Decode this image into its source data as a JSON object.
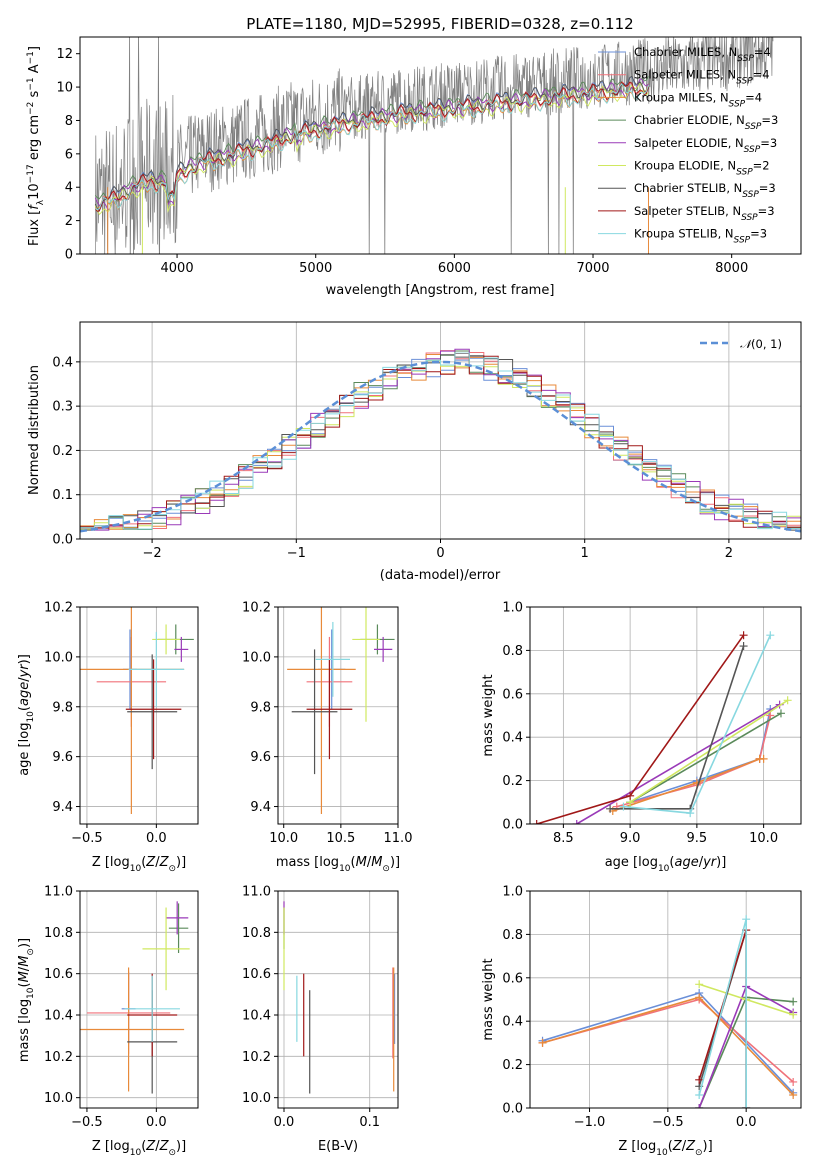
{
  "figure_title": "PLATE=1180, MJD=52995, FIBERID=0328, z=0.112",
  "colors": {
    "Chabrier MILES": "#6a8fd8",
    "Salpeter MILES": "#f0727a",
    "Kroupa MILES": "#e88a3a",
    "Chabrier ELODIE": "#5a8a5a",
    "Salpeter ELODIE": "#9a3ab8",
    "Kroupa ELODIE": "#d0e860",
    "Chabrier STELIB": "#555555",
    "Salpeter STELIB": "#a01818",
    "Kroupa STELIB": "#88d8e0",
    "data": "#808080",
    "normal": "#5b8fd6"
  },
  "chart_data": [
    {
      "id": "spectrum",
      "type": "line",
      "title": "PLATE=1180, MJD=52995, FIBERID=0328, z=0.112",
      "xlabel": "wavelength [Angstrom, rest frame]",
      "ylabel": "Flux [fλ10⁻¹⁷ erg cm⁻² s⁻¹ A⁻¹]",
      "xlim": [
        3300,
        8500
      ],
      "ylim": [
        0,
        13
      ],
      "xticks": [
        4000,
        5000,
        6000,
        7000,
        8000
      ],
      "yticks": [
        0,
        2,
        4,
        6,
        8,
        10,
        12
      ],
      "grid": false,
      "legend_position": "top-right",
      "continuum": {
        "x": [
          3410,
          3500,
          3600,
          3700,
          3800,
          3900,
          4000,
          4100,
          4200,
          4300,
          4400,
          4500,
          4600,
          4700,
          4800,
          4900,
          5000,
          5200,
          5400,
          5600,
          5800,
          6000,
          6200,
          6400,
          6600,
          6800,
          7000,
          7200,
          7400,
          7600,
          7800,
          8000,
          8300
        ],
        "y": [
          3.3,
          3.6,
          4.0,
          4.6,
          4.9,
          4.8,
          5.2,
          5.8,
          6.2,
          6.4,
          6.6,
          6.9,
          7.1,
          7.4,
          7.8,
          8.0,
          8.2,
          8.6,
          8.9,
          9.2,
          9.4,
          9.6,
          9.8,
          10.0,
          10.2,
          10.4,
          10.6,
          10.8,
          11.0,
          11.2,
          11.5,
          11.8,
          12.3
        ]
      },
      "series": [
        {
          "name": "Chabrier MILES, N_SSP=4",
          "n": "4"
        },
        {
          "name": "Salpeter MILES, N_SSP=4",
          "n": "4"
        },
        {
          "name": "Kroupa MILES, N_SSP=4",
          "n": "4"
        },
        {
          "name": "Chabrier ELODIE, N_SSP=3",
          "n": "3"
        },
        {
          "name": "Salpeter ELODIE, N_SSP=3",
          "n": "3"
        },
        {
          "name": "Kroupa ELODIE, N_SSP=2",
          "n": "2"
        },
        {
          "name": "Chabrier STELIB, N_SSP=3",
          "n": "3"
        },
        {
          "name": "Salpeter STELIB, N_SSP=3",
          "n": "3"
        },
        {
          "name": "Kroupa STELIB, N_SSP=3",
          "n": "3"
        }
      ]
    },
    {
      "id": "residuals",
      "type": "line",
      "xlabel": "(data-model)/error",
      "ylabel": "Normed distribution",
      "xlim": [
        -2.5,
        2.5
      ],
      "ylim": [
        0,
        0.49
      ],
      "xticks": [
        -2,
        -1,
        0,
        1,
        2
      ],
      "yticks": [
        0.0,
        0.1,
        0.2,
        0.3,
        0.4
      ],
      "grid": true,
      "legend_position": "top-right",
      "reference": {
        "name": "N(0,1)",
        "mean": 0,
        "sigma": 1,
        "peak": 0.4
      },
      "bin_width": 0.1
    },
    {
      "id": "age-vs-Z",
      "type": "scatter",
      "xlabel": "Z [log10(Z/Z⊙)]",
      "ylabel": "age [log10(age/yr)]",
      "xlim": [
        -0.55,
        0.3
      ],
      "ylim": [
        9.33,
        10.2
      ],
      "xticks": [
        -0.5,
        0.0
      ],
      "yticks": [
        9.4,
        9.6,
        9.8,
        10.0,
        10.2
      ],
      "grid": true,
      "points": [
        {
          "series": "Chabrier MILES",
          "x": -0.19,
          "y": 9.95,
          "xerr": 0.05,
          "yerr": 0.16
        },
        {
          "series": "Salpeter MILES",
          "x": -0.18,
          "y": 9.9,
          "xerr": 0.25,
          "yerr": 0.18
        },
        {
          "series": "Kroupa MILES",
          "x": -0.18,
          "y": 9.95,
          "xerr": 0.38,
          "yerr": 0.58
        },
        {
          "series": "Chabrier ELODIE",
          "x": 0.14,
          "y": 10.07,
          "xerr": 0.13,
          "yerr": 0.06
        },
        {
          "series": "Salpeter ELODIE",
          "x": 0.18,
          "y": 10.03,
          "xerr": 0.05,
          "yerr": 0.05
        },
        {
          "series": "Kroupa ELODIE",
          "x": 0.07,
          "y": 10.07,
          "xerr": 0.1,
          "yerr": 0.06
        },
        {
          "series": "Chabrier STELIB",
          "x": -0.03,
          "y": 9.78,
          "xerr": 0.18,
          "yerr": 0.23
        },
        {
          "series": "Salpeter STELIB",
          "x": -0.02,
          "y": 9.79,
          "xerr": 0.2,
          "yerr": 0.2
        },
        {
          "series": "Kroupa STELIB",
          "x": 0.0,
          "y": 9.95,
          "xerr": 0.2,
          "yerr": 0.15
        }
      ]
    },
    {
      "id": "age-vs-mass",
      "type": "scatter",
      "xlabel": "mass [log10(M/M⊙)]",
      "ylabel": "",
      "xlim": [
        9.95,
        11.0
      ],
      "ylim": [
        9.33,
        10.2
      ],
      "xticks": [
        10.0,
        10.5,
        11.0
      ],
      "yticks": [
        9.4,
        9.6,
        9.8,
        10.0,
        10.2
      ],
      "grid": true,
      "points": [
        {
          "series": "Chabrier MILES",
          "x": 10.42,
          "y": 9.95,
          "xerr": 0.12,
          "yerr": 0.16
        },
        {
          "series": "Salpeter MILES",
          "x": 10.4,
          "y": 9.9,
          "xerr": 0.2,
          "yerr": 0.18
        },
        {
          "series": "Kroupa MILES",
          "x": 10.33,
          "y": 9.95,
          "xerr": 0.3,
          "yerr": 0.58
        },
        {
          "series": "Chabrier ELODIE",
          "x": 10.82,
          "y": 10.07,
          "xerr": 0.15,
          "yerr": 0.06
        },
        {
          "series": "Salpeter ELODIE",
          "x": 10.87,
          "y": 10.03,
          "xerr": 0.08,
          "yerr": 0.05
        },
        {
          "series": "Kroupa ELODIE",
          "x": 10.72,
          "y": 10.07,
          "xerr": 0.12,
          "yerr": 0.33
        },
        {
          "series": "Chabrier STELIB",
          "x": 10.27,
          "y": 9.78,
          "xerr": 0.2,
          "yerr": 0.25
        },
        {
          "series": "Salpeter STELIB",
          "x": 10.4,
          "y": 9.79,
          "xerr": 0.2,
          "yerr": 0.2
        },
        {
          "series": "Kroupa STELIB",
          "x": 10.43,
          "y": 9.99,
          "xerr": 0.15,
          "yerr": 0.15
        }
      ]
    },
    {
      "id": "weight-vs-age",
      "type": "line",
      "xlabel": "age [log10(age/yr)]",
      "ylabel": "mass weight",
      "xlim": [
        8.25,
        10.28
      ],
      "ylim": [
        0.0,
        1.0
      ],
      "xticks": [
        8.5,
        9.0,
        9.5,
        10.0
      ],
      "yticks": [
        0.0,
        0.2,
        0.4,
        0.6,
        0.8,
        1.0
      ],
      "grid": true,
      "series": [
        {
          "name": "Chabrier MILES",
          "x": [
            9.0,
            9.5,
            9.97,
            10.05
          ],
          "y": [
            0.1,
            0.2,
            0.3,
            0.53
          ]
        },
        {
          "name": "Salpeter MILES",
          "x": [
            8.9,
            9.5,
            9.97,
            10.05
          ],
          "y": [
            0.08,
            0.18,
            0.3,
            0.5
          ]
        },
        {
          "name": "Kroupa MILES",
          "x": [
            8.87,
            9.5,
            9.97,
            10.0
          ],
          "y": [
            0.06,
            0.19,
            0.3,
            0.3
          ]
        },
        {
          "name": "Chabrier ELODIE",
          "x": [
            9.0,
            10.13
          ],
          "y": [
            0.1,
            0.51
          ]
        },
        {
          "name": "Salpeter ELODIE",
          "x": [
            8.6,
            10.12
          ],
          "y": [
            0.0,
            0.55
          ]
        },
        {
          "name": "Kroupa ELODIE",
          "x": [
            9.0,
            10.18
          ],
          "y": [
            0.1,
            0.57
          ]
        },
        {
          "name": "Chabrier STELIB",
          "x": [
            8.85,
            9.45,
            9.85
          ],
          "y": [
            0.07,
            0.07,
            0.82
          ]
        },
        {
          "name": "Salpeter STELIB",
          "x": [
            8.3,
            9.0,
            9.85
          ],
          "y": [
            0.0,
            0.13,
            0.87
          ]
        },
        {
          "name": "Kroupa STELIB",
          "x": [
            8.95,
            9.45,
            10.05
          ],
          "y": [
            0.08,
            0.05,
            0.87
          ]
        }
      ]
    },
    {
      "id": "mass-vs-Z",
      "type": "scatter",
      "xlabel": "Z [log10(Z/Z⊙)]",
      "ylabel": "mass [log10(M/M⊙)]",
      "xlim": [
        -0.55,
        0.3
      ],
      "ylim": [
        9.95,
        11.0
      ],
      "xticks": [
        -0.5,
        0.0
      ],
      "yticks": [
        10.0,
        10.2,
        10.4,
        10.6,
        10.8,
        11.0
      ],
      "grid": true,
      "points": [
        {
          "series": "Chabrier MILES",
          "x": -0.2,
          "y": 10.43,
          "xerr": 0.05,
          "yerr": 0.17
        },
        {
          "series": "Salpeter MILES",
          "x": -0.2,
          "y": 10.41,
          "xerr": 0.3,
          "yerr": 0.2
        },
        {
          "series": "Kroupa MILES",
          "x": -0.2,
          "y": 10.33,
          "xerr": 0.4,
          "yerr": 0.3
        },
        {
          "series": "Chabrier ELODIE",
          "x": 0.16,
          "y": 10.82,
          "xerr": 0.07,
          "yerr": 0.12
        },
        {
          "series": "Salpeter ELODIE",
          "x": 0.15,
          "y": 10.87,
          "xerr": 0.08,
          "yerr": 0.08
        },
        {
          "series": "Kroupa ELODIE",
          "x": 0.07,
          "y": 10.72,
          "xerr": 0.17,
          "yerr": 0.2
        },
        {
          "series": "Chabrier STELIB",
          "x": -0.03,
          "y": 10.27,
          "xerr": 0.18,
          "yerr": 0.25
        },
        {
          "series": "Salpeter STELIB",
          "x": -0.03,
          "y": 10.4,
          "xerr": 0.18,
          "yerr": 0.2
        },
        {
          "series": "Kroupa STELIB",
          "x": -0.03,
          "y": 10.43,
          "xerr": 0.2,
          "yerr": 0.16
        }
      ]
    },
    {
      "id": "mass-vs-ebv",
      "type": "scatter",
      "xlabel": "E(B-V)",
      "ylabel": "",
      "xlim": [
        -0.007,
        0.133
      ],
      "ylim": [
        9.95,
        11.0
      ],
      "xticks": [
        0.0,
        0.1
      ],
      "yticks": [
        10.0,
        10.2,
        10.4,
        10.6,
        10.8,
        11.0
      ],
      "grid": true,
      "points": [
        {
          "series": "Chabrier MILES",
          "x": 0.129,
          "y": 10.43,
          "yerr": 0.17
        },
        {
          "series": "Salpeter MILES",
          "x": 0.127,
          "y": 10.41,
          "yerr": 0.22
        },
        {
          "series": "Kroupa MILES",
          "x": 0.128,
          "y": 10.33,
          "yerr": 0.3
        },
        {
          "series": "Chabrier ELODIE",
          "x": 0.0,
          "y": 10.82,
          "yerr": 0.1
        },
        {
          "series": "Salpeter ELODIE",
          "x": 0.0,
          "y": 10.87,
          "yerr": 0.08
        },
        {
          "series": "Kroupa ELODIE",
          "x": 0.0,
          "y": 10.72,
          "yerr": 0.2
        },
        {
          "series": "Chabrier STELIB",
          "x": 0.03,
          "y": 10.27,
          "yerr": 0.25
        },
        {
          "series": "Salpeter STELIB",
          "x": 0.023,
          "y": 10.4,
          "yerr": 0.2
        },
        {
          "series": "Kroupa STELIB",
          "x": 0.015,
          "y": 10.43,
          "yerr": 0.16
        }
      ]
    },
    {
      "id": "weight-vs-Z",
      "type": "line",
      "xlabel": "Z [log10(Z/Z⊙)]",
      "ylabel": "mass weight",
      "xlim": [
        -1.38,
        0.35
      ],
      "ylim": [
        0.0,
        1.0
      ],
      "xticks": [
        -1.0,
        -0.5,
        0.0
      ],
      "yticks": [
        0.0,
        0.2,
        0.4,
        0.6,
        0.8,
        1.0
      ],
      "grid": true,
      "series": [
        {
          "name": "Chabrier MILES",
          "x": [
            -1.3,
            -0.3,
            0.3
          ],
          "y": [
            0.31,
            0.53,
            0.07
          ]
        },
        {
          "name": "Salpeter MILES",
          "x": [
            -1.3,
            -0.3,
            0.3
          ],
          "y": [
            0.3,
            0.5,
            0.12
          ]
        },
        {
          "name": "Kroupa MILES",
          "x": [
            -1.3,
            -0.3,
            0.3
          ],
          "y": [
            0.3,
            0.51,
            0.06
          ]
        },
        {
          "name": "Chabrier ELODIE",
          "x": [
            -0.3,
            0.0,
            0.3
          ],
          "y": [
            0.0,
            0.51,
            0.49
          ]
        },
        {
          "name": "Salpeter ELODIE",
          "x": [
            -0.3,
            0.0,
            0.3
          ],
          "y": [
            0.0,
            0.56,
            0.44
          ]
        },
        {
          "name": "Kroupa ELODIE",
          "x": [
            -0.3,
            0.0,
            0.3
          ],
          "y": [
            0.57,
            0.5,
            0.43
          ]
        },
        {
          "name": "Chabrier STELIB",
          "x": [
            -0.3,
            0.0,
            0.0
          ],
          "y": [
            0.1,
            0.82,
            0.0
          ]
        },
        {
          "name": "Salpeter STELIB",
          "x": [
            -0.3,
            0.0,
            0.0
          ],
          "y": [
            0.13,
            0.82,
            0.0
          ]
        },
        {
          "name": "Kroupa STELIB",
          "x": [
            -0.3,
            0.0,
            0.0
          ],
          "y": [
            0.06,
            0.87,
            0.0
          ]
        }
      ]
    }
  ]
}
